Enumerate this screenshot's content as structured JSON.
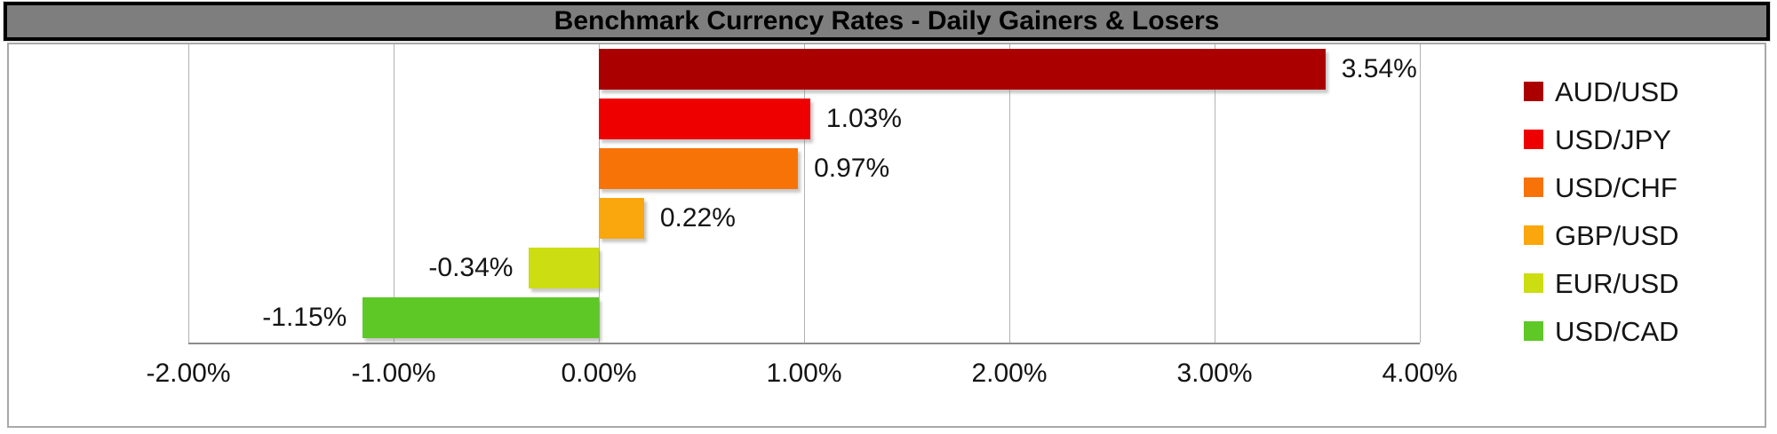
{
  "title": "Benchmark Currency Rates - Daily Gainers & Losers",
  "frame_colors": {
    "title_bar_bg": "#7e7e7e",
    "title_bar_border": "#000000",
    "chart_border": "#a9a9a9",
    "gridline": "#b2b2b2",
    "axis_line": "#8c8c8c"
  },
  "chart_data": {
    "type": "bar",
    "orientation": "horizontal",
    "title": "Benchmark Currency Rates - Daily Gainers & Losers",
    "xlabel": "",
    "ylabel": "",
    "xlim": [
      -2,
      4
    ],
    "grid": true,
    "legend_position": "right",
    "tick_labels": [
      "-2.00%",
      "-1.00%",
      "0.00%",
      "1.00%",
      "2.00%",
      "3.00%",
      "4.00%"
    ],
    "series": [
      {
        "name": "AUD/USD",
        "value": 3.54,
        "label": "3.54%",
        "color": "#AA0000"
      },
      {
        "name": "USD/JPY",
        "value": 1.03,
        "label": "1.03%",
        "color": "#EE0000"
      },
      {
        "name": "USD/CHF",
        "value": 0.97,
        "label": "0.97%",
        "color": "#F87307"
      },
      {
        "name": "GBP/USD",
        "value": 0.22,
        "label": "0.22%",
        "color": "#FAA70D"
      },
      {
        "name": "EUR/USD",
        "value": -0.34,
        "label": "-0.34%",
        "color": "#CCDD11"
      },
      {
        "name": "USD/CAD",
        "value": -1.15,
        "label": "-1.15%",
        "color": "#5EC826"
      }
    ]
  }
}
